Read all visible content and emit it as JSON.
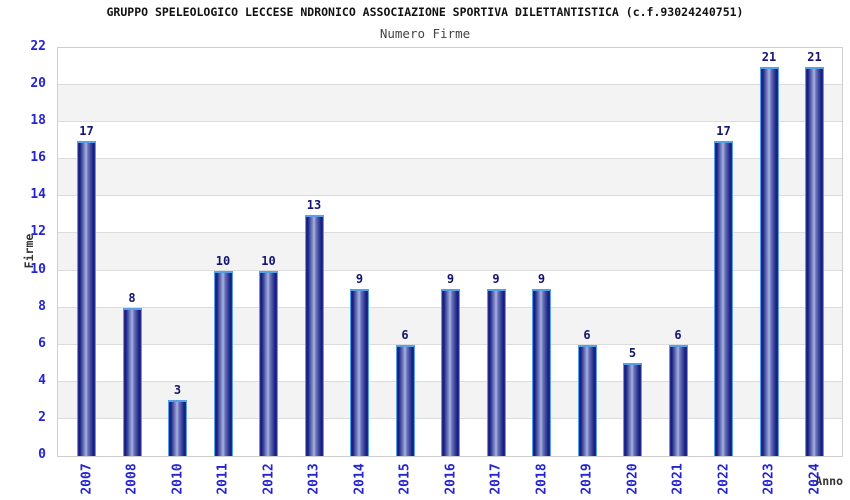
{
  "header": {
    "title": "GRUPPO SPELEOLOGICO LECCESE NDRONICO ASSOCIAZIONE SPORTIVA DILETTANTISTICA (c.f.93024240751)",
    "subtitle": "Numero Firme"
  },
  "chart_data": {
    "type": "bar",
    "title": "GRUPPO SPELEOLOGICO LECCESE NDRONICO ASSOCIAZIONE SPORTIVA DILETTANTISTICA (c.f.93024240751)",
    "subtitle": "Numero Firme",
    "categories": [
      "2007",
      "2008",
      "2010",
      "2011",
      "2012",
      "2013",
      "2014",
      "2015",
      "2016",
      "2017",
      "2018",
      "2019",
      "2020",
      "2021",
      "2022",
      "2023",
      "2024"
    ],
    "values": [
      17,
      8,
      3,
      10,
      10,
      13,
      9,
      6,
      9,
      9,
      9,
      6,
      5,
      6,
      17,
      21,
      21
    ],
    "xlabel": "Anno",
    "ylabel": "Firme",
    "ylim": [
      0,
      22
    ],
    "yticks": [
      0,
      2,
      4,
      6,
      8,
      10,
      12,
      14,
      16,
      18,
      20,
      22
    ],
    "grid": true,
    "legend_position": "none",
    "bar_value_labels_shown": true,
    "colors": {
      "bar_border": "#55a0e8",
      "bar_dark": "#171d7e",
      "bar_mid": "#6b77bd",
      "bar_light": "#aab2dc",
      "tick_label": "#2424d0",
      "value_label": "#14146e",
      "band_gray": "#f3f3f3",
      "gridline": "#dcdcdc",
      "plot_border": "#cfcfcf",
      "title": "#111111",
      "subtitle": "#444444",
      "axis_label": "#333333"
    }
  }
}
